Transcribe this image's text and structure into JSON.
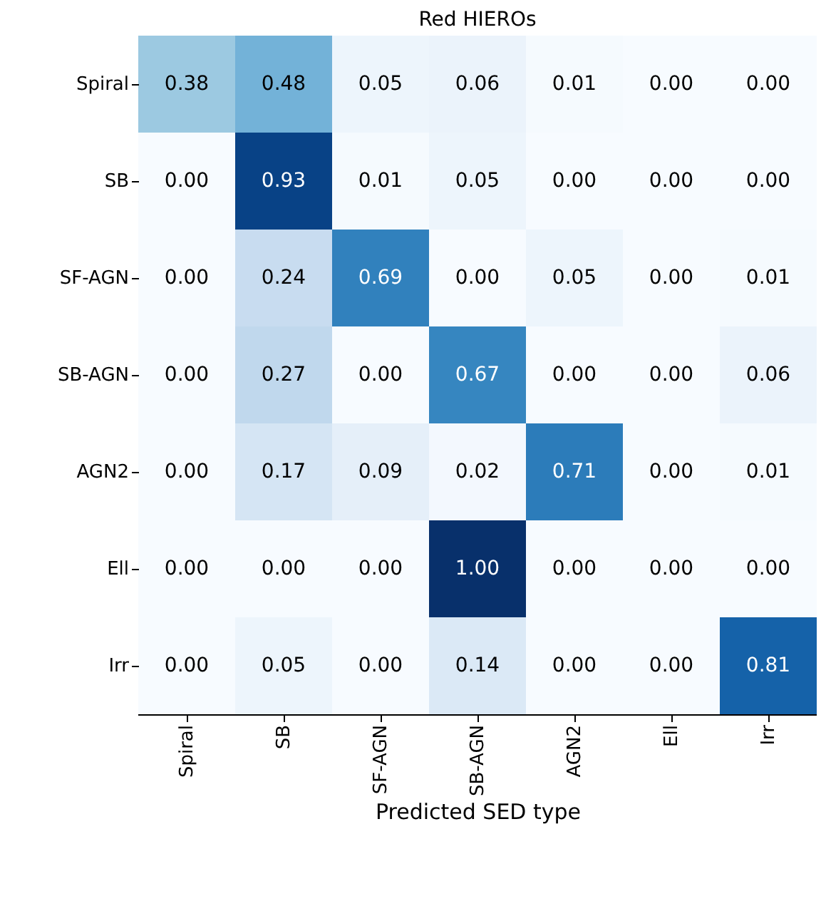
{
  "chart_data": {
    "type": "heatmap",
    "title": "Red HIEROs",
    "xlabel": "Predicted SED type",
    "categories": [
      "Spiral",
      "SB",
      "SF-AGN",
      "SB-AGN",
      "AGN2",
      "Ell",
      "Irr"
    ],
    "y_categories": [
      "Spiral",
      "SB",
      "SF-AGN",
      "SB-AGN",
      "AGN2",
      "Ell",
      "Irr"
    ],
    "cells": [
      [
        0.38,
        0.48,
        0.05,
        0.06,
        0.01,
        0.0,
        0.0
      ],
      [
        0.0,
        0.93,
        0.01,
        0.05,
        0.0,
        0.0,
        0.0
      ],
      [
        0.0,
        0.24,
        0.69,
        0.0,
        0.05,
        0.0,
        0.01
      ],
      [
        0.0,
        0.27,
        0.0,
        0.67,
        0.0,
        0.0,
        0.06
      ],
      [
        0.0,
        0.17,
        0.09,
        0.02,
        0.71,
        0.0,
        0.01
      ],
      [
        0.0,
        0.0,
        0.0,
        1.0,
        0.0,
        0.0,
        0.0
      ],
      [
        0.0,
        0.05,
        0.0,
        0.14,
        0.0,
        0.0,
        0.81
      ]
    ],
    "cell_labels": [
      [
        "0.38",
        "0.48",
        "0.05",
        "0.06",
        "0.01",
        "0.00",
        "0.00"
      ],
      [
        "0.00",
        "0.93",
        "0.01",
        "0.05",
        "0.00",
        "0.00",
        "0.00"
      ],
      [
        "0.00",
        "0.24",
        "0.69",
        "0.00",
        "0.05",
        "0.00",
        "0.01"
      ],
      [
        "0.00",
        "0.27",
        "0.00",
        "0.67",
        "0.00",
        "0.00",
        "0.06"
      ],
      [
        "0.00",
        "0.17",
        "0.09",
        "0.02",
        "0.71",
        "0.00",
        "0.01"
      ],
      [
        "0.00",
        "0.00",
        "0.00",
        "1.00",
        "0.00",
        "0.00",
        "0.00"
      ],
      [
        "0.00",
        "0.05",
        "0.00",
        "0.14",
        "0.00",
        "0.00",
        "0.81"
      ]
    ]
  }
}
